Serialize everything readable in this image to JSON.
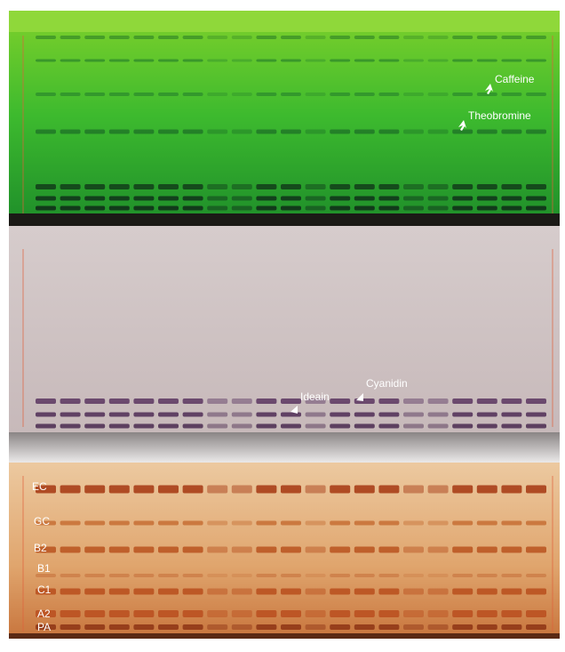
{
  "plate_1_labels": [
    "Caffeine",
    "Theobromine"
  ],
  "plate_2_labels": [
    "Ideain",
    "Cyanidin"
  ],
  "plate_3_labels": [
    "EC",
    "GC",
    "B2",
    "B1",
    "C1",
    "A2",
    "PA"
  ]
}
